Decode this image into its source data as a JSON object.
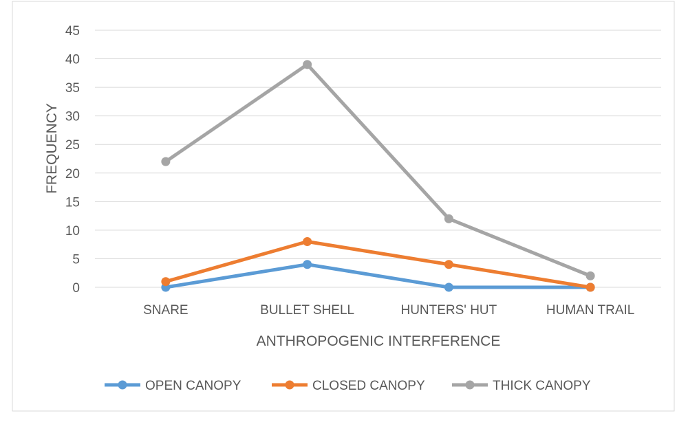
{
  "chart_data": {
    "type": "line",
    "title": "",
    "xlabel": "ANTHROPOGENIC INTERFERENCE",
    "ylabel": "FREQUENCY",
    "categories": [
      "SNARE",
      "BULLET SHELL",
      "HUNTERS' HUT",
      "HUMAN TRAIL"
    ],
    "ylim": [
      0,
      45
    ],
    "yticks": [
      0,
      5,
      10,
      15,
      20,
      25,
      30,
      35,
      40,
      45
    ],
    "grid": true,
    "legend_position": "bottom",
    "series": [
      {
        "name": "OPEN CANOPY",
        "color": "#5B9BD5",
        "values": [
          0,
          4,
          0,
          0
        ]
      },
      {
        "name": "CLOSED CANOPY",
        "color": "#ED7D31",
        "values": [
          1,
          8,
          4,
          0
        ]
      },
      {
        "name": "THICK CANOPY",
        "color": "#A5A5A5",
        "values": [
          22,
          39,
          12,
          2
        ]
      }
    ]
  }
}
